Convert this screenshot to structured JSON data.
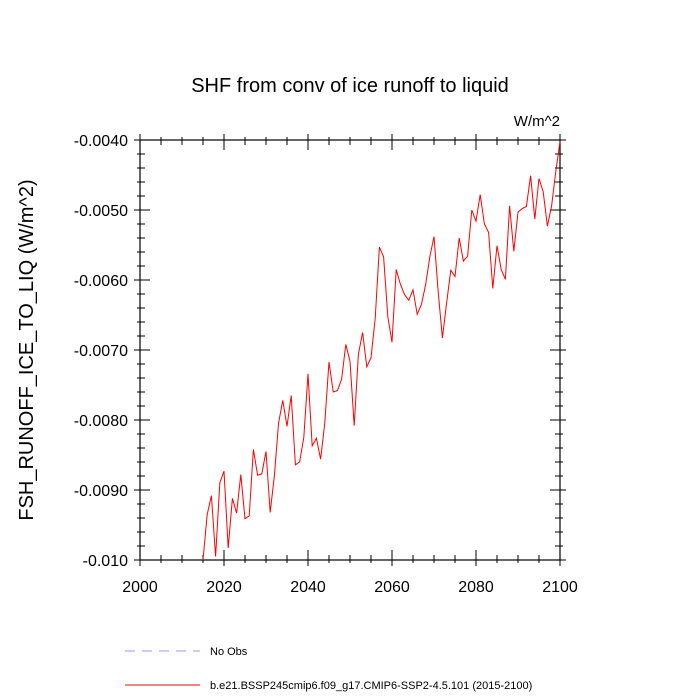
{
  "chart_data": {
    "type": "line",
    "title": "SHF from conv of ice runoff to liquid",
    "units": "W/m^2",
    "ylabel": "FSH_RUNOFF_ICE_TO_LIQ  (W/m^2)",
    "xlabel": "",
    "xlim": [
      2000,
      2100
    ],
    "ylim": [
      -0.01,
      -0.004
    ],
    "xticks": [
      2000,
      2020,
      2040,
      2060,
      2080,
      2100
    ],
    "xtick_labels": [
      "2000",
      "2020",
      "2040",
      "2060",
      "2080",
      "2100"
    ],
    "yticks": [
      -0.004,
      -0.005,
      -0.006,
      -0.007,
      -0.008,
      -0.009,
      -0.01
    ],
    "ytick_labels": [
      "-0.0040",
      "-0.0050",
      "-0.0060",
      "-0.0070",
      "-0.0080",
      "-0.0090",
      "-0.010"
    ],
    "grid": false,
    "legend_position": "bottom-left",
    "series": [
      {
        "name": "b.e21.BSSP245cmip6.f09_g17.CMIP6-SSP2-4.5.101 (2015-2100)",
        "color": "#ff0000",
        "style": "solid",
        "x": [
          2015,
          2016,
          2017,
          2018,
          2019,
          2020,
          2021,
          2022,
          2023,
          2024,
          2025,
          2026,
          2027,
          2028,
          2029,
          2030,
          2031,
          2032,
          2033,
          2034,
          2035,
          2036,
          2037,
          2038,
          2039,
          2040,
          2041,
          2042,
          2043,
          2044,
          2045,
          2046,
          2047,
          2048,
          2049,
          2050,
          2051,
          2052,
          2053,
          2054,
          2055,
          2056,
          2057,
          2058,
          2059,
          2060,
          2061,
          2062,
          2063,
          2064,
          2065,
          2066,
          2067,
          2068,
          2069,
          2070,
          2071,
          2072,
          2073,
          2074,
          2075,
          2076,
          2077,
          2078,
          2079,
          2080,
          2081,
          2082,
          2083,
          2084,
          2085,
          2086,
          2087,
          2088,
          2089,
          2090,
          2091,
          2092,
          2093,
          2094,
          2095,
          2096,
          2097,
          2098,
          2099,
          2100
        ],
        "values": [
          -0.01,
          -0.00935,
          -0.00908,
          -0.00995,
          -0.0089,
          -0.00873,
          -0.00983,
          -0.00912,
          -0.00933,
          -0.00878,
          -0.00941,
          -0.00937,
          -0.00842,
          -0.00879,
          -0.00877,
          -0.00845,
          -0.00932,
          -0.00879,
          -0.00804,
          -0.00772,
          -0.00809,
          -0.00765,
          -0.00864,
          -0.0086,
          -0.00825,
          -0.00734,
          -0.00837,
          -0.00826,
          -0.00856,
          -0.00804,
          -0.00717,
          -0.0076,
          -0.00758,
          -0.00742,
          -0.00692,
          -0.00716,
          -0.00808,
          -0.00706,
          -0.00675,
          -0.00724,
          -0.00711,
          -0.00655,
          -0.00553,
          -0.00567,
          -0.00652,
          -0.00689,
          -0.00585,
          -0.00606,
          -0.00621,
          -0.00629,
          -0.00614,
          -0.00649,
          -0.00635,
          -0.00607,
          -0.00567,
          -0.00538,
          -0.00617,
          -0.00683,
          -0.00633,
          -0.00586,
          -0.00595,
          -0.0054,
          -0.00573,
          -0.00566,
          -0.005,
          -0.00516,
          -0.00478,
          -0.0052,
          -0.00532,
          -0.00612,
          -0.00551,
          -0.00585,
          -0.00599,
          -0.00494,
          -0.00559,
          -0.00503,
          -0.00498,
          -0.00495,
          -0.00451,
          -0.00513,
          -0.00455,
          -0.00474,
          -0.00523,
          -0.00494,
          -0.00445,
          -0.00402
        ]
      },
      {
        "name": "No Obs",
        "color": "#9999ff",
        "style": "dashed",
        "x": [],
        "values": []
      }
    ]
  }
}
